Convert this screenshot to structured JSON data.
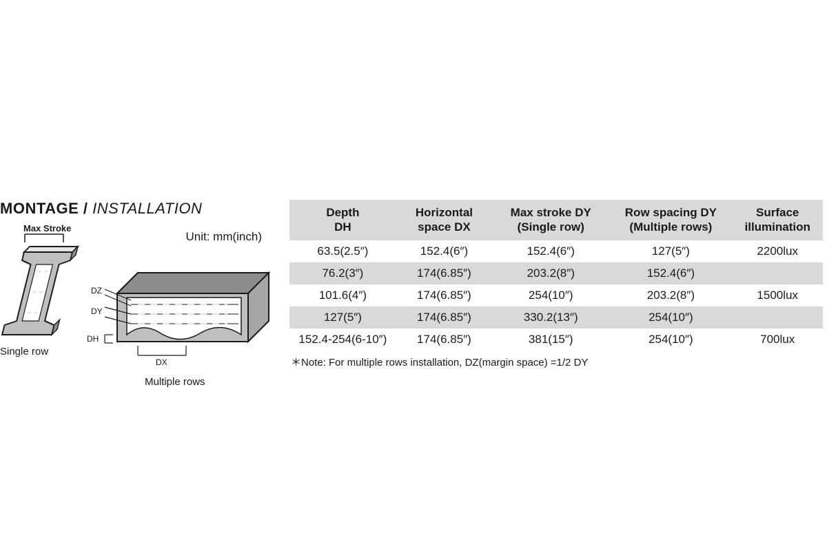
{
  "heading": {
    "main": "MONTAGE / ",
    "sub": "INSTALLATION"
  },
  "unit_label": "Unit: mm(inch)",
  "captions": {
    "single": "Single row",
    "multiple": "Multiple rows"
  },
  "diagram_labels": {
    "max_stroke": "Max Stroke",
    "dz": "DZ",
    "dy": "DY",
    "dh": "DH",
    "dx": "DX"
  },
  "table": {
    "columns": [
      "Depth\nDH",
      "Horizontal\nspace DX",
      "Max stroke DY\n(Single row)",
      "Row spacing DY\n(Multiple rows)",
      "Surface\nillumination"
    ],
    "col_widths_pct": [
      20,
      18,
      22,
      23,
      17
    ],
    "rows": [
      [
        "63.5(2.5″)",
        "152.4(6″)",
        "152.4(6″)",
        "127(5″)",
        "2200lux"
      ],
      [
        "76.2(3″)",
        "174(6.85″)",
        "203.2(8″)",
        "152.4(6″)",
        ""
      ],
      [
        "101.6(4″)",
        "174(6.85″)",
        "254(10″)",
        "203.2(8″)",
        "1500lux"
      ],
      [
        "127(5″)",
        "174(6.85″)",
        "330.2(13″)",
        "254(10″)",
        ""
      ],
      [
        "152.4-254(6-10″)",
        "174(6.85″)",
        "381(15″)",
        "254(10″)",
        "700lux"
      ]
    ],
    "header_bg": "#d9d9d9",
    "row_alt_bg": "#d9d9d9",
    "row_bg": "#ffffff",
    "font_size": 17
  },
  "note": "＊Note: For multiple rows installation, DZ(margin space) =1/2 DY",
  "colors": {
    "text": "#1a1a1a",
    "bg": "#ffffff",
    "stroke": "#1a1a1a",
    "channel_fill": "#bfbfbf",
    "channel_light": "#e6e6e6",
    "channel_dark": "#8c8c8c",
    "led_seg": "#e8e8e8"
  }
}
